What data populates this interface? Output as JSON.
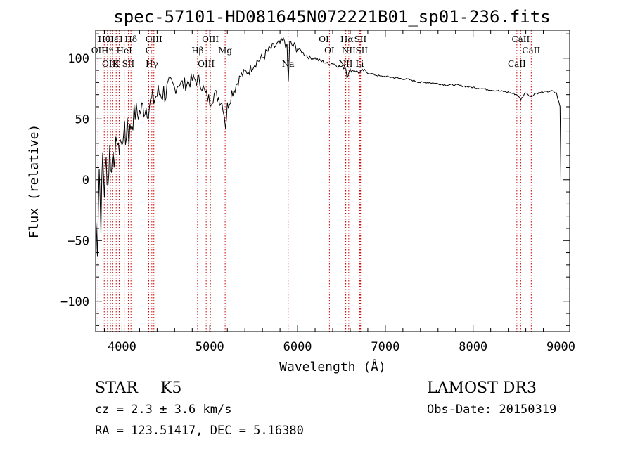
{
  "chart_data": {
    "type": "line",
    "title": "spec-57101-HD081645N072221B01_sp01-236.fits",
    "xlabel": "Wavelength (Å)",
    "ylabel": "Flux (relative)",
    "xlim": [
      3700,
      9100
    ],
    "ylim": [
      -125,
      123
    ],
    "xticks": [
      4000,
      5000,
      6000,
      7000,
      8000,
      9000
    ],
    "yticks": [
      -100,
      -50,
      0,
      50,
      100
    ],
    "series": [
      {
        "name": "spectrum",
        "x": [
          3700,
          3720,
          3740,
          3760,
          3780,
          3800,
          3820,
          3840,
          3860,
          3880,
          3900,
          3920,
          3940,
          3960,
          3980,
          4000,
          4020,
          4040,
          4060,
          4080,
          4100,
          4150,
          4200,
          4250,
          4300,
          4350,
          4400,
          4450,
          4500,
          4550,
          4600,
          4650,
          4700,
          4750,
          4800,
          4850,
          4900,
          4950,
          5000,
          5050,
          5100,
          5150,
          5180,
          5200,
          5250,
          5300,
          5350,
          5400,
          5450,
          5500,
          5550,
          5600,
          5650,
          5700,
          5750,
          5800,
          5850,
          5880,
          5895,
          5910,
          5950,
          6000,
          6050,
          6100,
          6150,
          6200,
          6250,
          6300,
          6350,
          6400,
          6450,
          6500,
          6550,
          6563,
          6600,
          6650,
          6700,
          6750,
          6800,
          6850,
          6900,
          6950,
          7000,
          7100,
          7200,
          7300,
          7400,
          7500,
          7600,
          7700,
          7800,
          7900,
          8000,
          8100,
          8200,
          8300,
          8400,
          8498,
          8542,
          8600,
          8662,
          8700,
          8800,
          8900,
          8950,
          8990,
          9000
        ],
        "y": [
          -30,
          -55,
          10,
          -35,
          20,
          -10,
          15,
          -5,
          25,
          5,
          30,
          10,
          40,
          20,
          35,
          25,
          45,
          30,
          50,
          35,
          45,
          55,
          55,
          60,
          60,
          65,
          70,
          72,
          72,
          75,
          75,
          80,
          78,
          80,
          82,
          82,
          80,
          70,
          65,
          70,
          68,
          62,
          45,
          60,
          72,
          78,
          85,
          88,
          90,
          95,
          98,
          100,
          105,
          108,
          110,
          112,
          115,
          108,
          80,
          112,
          110,
          108,
          105,
          102,
          100,
          100,
          98,
          97,
          95,
          96,
          94,
          93,
          92,
          85,
          90,
          90,
          88,
          90,
          88,
          87,
          86,
          85,
          85,
          84,
          83,
          82,
          80,
          80,
          79,
          78,
          78,
          77,
          76,
          75,
          74,
          73,
          72,
          70,
          66,
          72,
          68,
          71,
          72,
          73,
          71,
          60,
          -2
        ]
      }
    ],
    "lines": [
      {
        "name": "Hθ",
        "x": 3798
      },
      {
        "name": "OII",
        "x": 3727
      },
      {
        "name": "OIII",
        "x": 3869
      },
      {
        "name": "Hε",
        "x": 3890
      },
      {
        "name": "Hη",
        "x": 3835
      },
      {
        "name": "K",
        "x": 3934
      },
      {
        "name": "H",
        "x": 3968
      },
      {
        "name": "HeI",
        "x": 4026
      },
      {
        "name": "SII",
        "x": 4072
      },
      {
        "name": "Hδ",
        "x": 4102
      },
      {
        "name": "G",
        "x": 4305
      },
      {
        "name": "Hγ",
        "x": 4340
      },
      {
        "name": "OIII",
        "x": 4363
      },
      {
        "name": "Hβ",
        "x": 4861
      },
      {
        "name": "OIII",
        "x": 4959
      },
      {
        "name": "OIII",
        "x": 5007
      },
      {
        "name": "Mg",
        "x": 5175
      },
      {
        "name": "Na",
        "x": 5893
      },
      {
        "name": "OI",
        "x": 6300
      },
      {
        "name": "OI",
        "x": 6363
      },
      {
        "name": "NII",
        "x": 6548
      },
      {
        "name": "Hα",
        "x": 6563
      },
      {
        "name": "NII",
        "x": 6583
      },
      {
        "name": "Li",
        "x": 6708
      },
      {
        "name": "SII",
        "x": 6716
      },
      {
        "name": "SII",
        "x": 6731
      },
      {
        "name": "CaII",
        "x": 8498
      },
      {
        "name": "CaII",
        "x": 8542
      },
      {
        "name": "CaII",
        "x": 8662
      }
    ]
  },
  "info": {
    "class": "STAR",
    "subclass": "K5",
    "cz": "cz = 2.3 ± 3.6 km/s",
    "radec": "RA = 123.51417, DEC =   5.16380",
    "survey": "LAMOST DR3",
    "obsdate": "Obs-Date: 20150319"
  },
  "colors": {
    "line_marker": "#cc0000",
    "axis": "#000000",
    "spectrum": "#000000"
  }
}
